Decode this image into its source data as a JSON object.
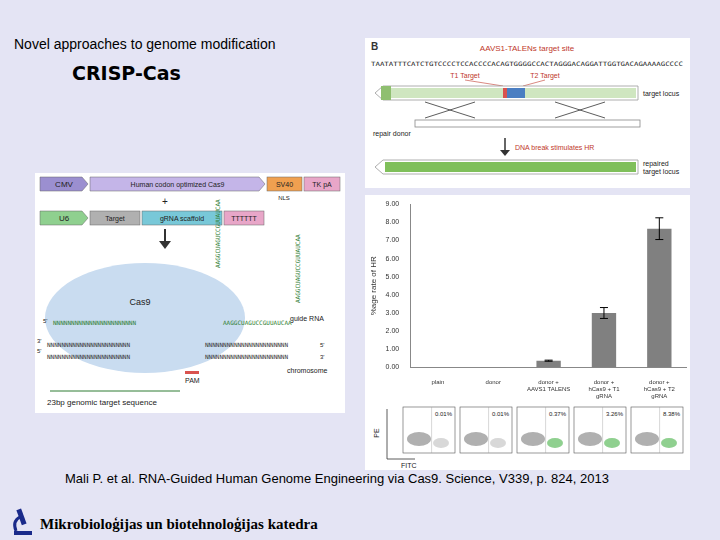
{
  "slide": {
    "title": "Novel approaches to genome modification",
    "heading": "CRISP-Cas",
    "citation": "Mali P. et al. RNA-Guided Human Genome Engineering via Cas9. Science, V339, p. 824, 2013",
    "footer": "Mikrobioloģijas un biotehnoloģijas katedra"
  },
  "panel_b": {
    "label": "B",
    "title": "AAVS1-TALENs target site",
    "sequence": "TAATATTTCATCTGTCCCCTCCACCCCACAGTGGGGCCACTAGGGACAGGATTGGTGACAGAAAAGCCCC",
    "targets": [
      "T1 Target",
      "T2 Target"
    ],
    "target_locus": "target locus",
    "repair_donor": "repair donor",
    "step": "DNA break stimulates HR",
    "repaired": "repaired target locus"
  },
  "construct": {
    "row1": [
      "CMV",
      "Human codon optimized Cas9",
      "SV40",
      "TK pA"
    ],
    "nls": "NLS",
    "plus": "+",
    "row2": [
      "U6",
      "Target",
      "gRNA scaffold",
      "TTTTTT"
    ],
    "protein": "Cas9",
    "guide": "guide RNA",
    "chromosome": "chromosome",
    "pam": "PAM",
    "target_note": "23bp genomic target sequence",
    "three_prime": "3'",
    "five_prime": "5'",
    "strand": "NNNNNNNNNNNNNNNNNNNNNNN",
    "grna_tail": "AAGGCUAGUCCGUUAUCAA"
  },
  "chart_data": {
    "type": "bar",
    "y_label": "%age rate of HR",
    "categories": [
      "plain",
      "donor",
      "donor + AAVS1 TALENS",
      "donor + hCas9 + T1 gRNA",
      "donor + hCas9 + T2 gRNA"
    ],
    "values": [
      0.01,
      0.01,
      0.37,
      3.0,
      7.65
    ],
    "errors": [
      0,
      0,
      0.03,
      0.3,
      0.6
    ],
    "color": "#808080",
    "ylim": [
      0,
      9
    ],
    "yticks": [
      {
        "value": 0,
        "label": "0.00"
      },
      {
        "value": 1,
        "label": "1.00"
      },
      {
        "value": 2,
        "label": "2.00"
      },
      {
        "value": 3,
        "label": "3.00"
      },
      {
        "value": 4,
        "label": "4.00"
      },
      {
        "value": 5,
        "label": "5.00"
      },
      {
        "value": 6,
        "label": "6.00"
      },
      {
        "value": 7,
        "label": "7.00"
      },
      {
        "value": 8,
        "label": "8.00"
      },
      {
        "value": 9,
        "label": "9.00"
      }
    ],
    "grid": false
  },
  "flow": {
    "x_label": "FITC",
    "y_label": "PE",
    "percentages": [
      "0.01%",
      "0.01%",
      "0.37%",
      "3.26%",
      "8.38%"
    ]
  }
}
